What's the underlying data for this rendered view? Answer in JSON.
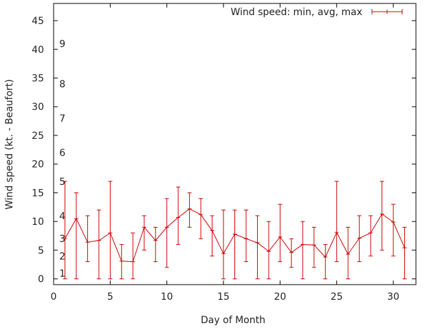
{
  "chart_data": {
    "type": "line",
    "title": "",
    "xlabel": "Day of Month",
    "ylabel": "Wind speed (kt. - Beaufort)",
    "xlim": [
      0,
      32
    ],
    "ylim": [
      -1,
      48
    ],
    "x_ticks": [
      0,
      5,
      10,
      15,
      20,
      25,
      30
    ],
    "y_ticks": [
      0,
      5,
      10,
      15,
      20,
      25,
      30,
      35,
      40,
      45
    ],
    "legend": {
      "label": "Wind speed: min, avg, max",
      "position": "top-right"
    },
    "beaufort_labels": [
      {
        "label": "1",
        "value": 1
      },
      {
        "label": "2",
        "value": 4
      },
      {
        "label": "3",
        "value": 7
      },
      {
        "label": "4",
        "value": 11
      },
      {
        "label": "5",
        "value": 17
      },
      {
        "label": "6",
        "value": 22
      },
      {
        "label": "7",
        "value": 28
      },
      {
        "label": "8",
        "value": 34
      },
      {
        "label": "9",
        "value": 41
      }
    ],
    "series": [
      {
        "name": "Wind speed: min, avg, max",
        "color": "#cc0000",
        "x": [
          1,
          2,
          3,
          4,
          5,
          6,
          7,
          8,
          9,
          10,
          11,
          12,
          13,
          14,
          15,
          16,
          17,
          18,
          19,
          20,
          21,
          22,
          23,
          24,
          25,
          26,
          27,
          28,
          29,
          30,
          31
        ],
        "avg": [
          7.0,
          10.5,
          6.4,
          6.7,
          8.0,
          3.1,
          3.0,
          9.0,
          6.7,
          9.0,
          10.7,
          12.2,
          11.2,
          8.4,
          4.4,
          7.8,
          7.0,
          6.3,
          4.8,
          7.3,
          4.6,
          6.0,
          5.9,
          3.8,
          8.1,
          4.3,
          7.1,
          8.0,
          11.3,
          9.9,
          5.4
        ],
        "min": [
          0,
          0,
          3,
          0,
          0,
          0,
          0,
          5,
          3,
          2,
          6,
          9,
          7,
          4,
          0,
          0,
          3,
          0,
          0,
          3,
          2,
          0,
          2,
          0,
          3,
          0,
          3,
          4,
          5,
          4,
          0
        ],
        "max": [
          17,
          15,
          11,
          12,
          17,
          6,
          8,
          11,
          9,
          14,
          16,
          15,
          14,
          11,
          12,
          12,
          12,
          11,
          10,
          13,
          7,
          10,
          9,
          6,
          17,
          9,
          11,
          11,
          17,
          13,
          9
        ]
      }
    ]
  }
}
